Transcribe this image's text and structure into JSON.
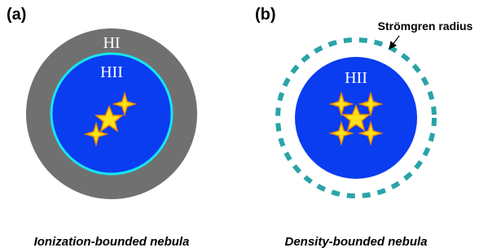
{
  "panels": [
    {
      "label": "(a)",
      "outer_label": "HI",
      "inner_label": "HII",
      "caption": "Ionization-bounded nebula"
    },
    {
      "label": "(b)",
      "inner_label": "HII",
      "annotation": "Strömgren radius",
      "caption": "Density-bounded nebula"
    }
  ]
}
